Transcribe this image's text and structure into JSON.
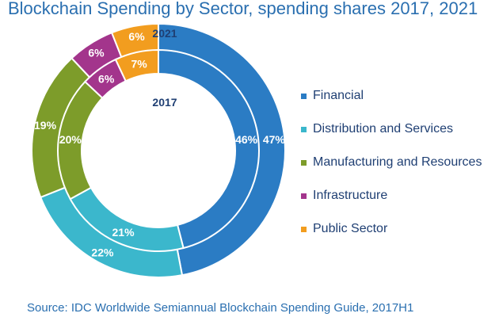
{
  "title": "Blockchain Spending by Sector, spending shares 2017, 2021",
  "source": "Source: IDC Worldwide Semiannual Blockchain Spending Guide, 2017H1",
  "chart_data": {
    "type": "donut",
    "categories": [
      "Financial",
      "Distribution and Services",
      "Manufacturing and Resources",
      "Infrastructure",
      "Public Sector"
    ],
    "colors": [
      "#2b7cc4",
      "#3bb7cc",
      "#7d9c2a",
      "#a3358c",
      "#f29d1f"
    ],
    "series": [
      {
        "name": "2021",
        "ring": "outer",
        "values": [
          47,
          22,
          19,
          6,
          6
        ]
      },
      {
        "name": "2017",
        "ring": "inner",
        "values": [
          46,
          21,
          20,
          6,
          7
        ]
      }
    ],
    "unit": "%",
    "legend_position": "right"
  }
}
